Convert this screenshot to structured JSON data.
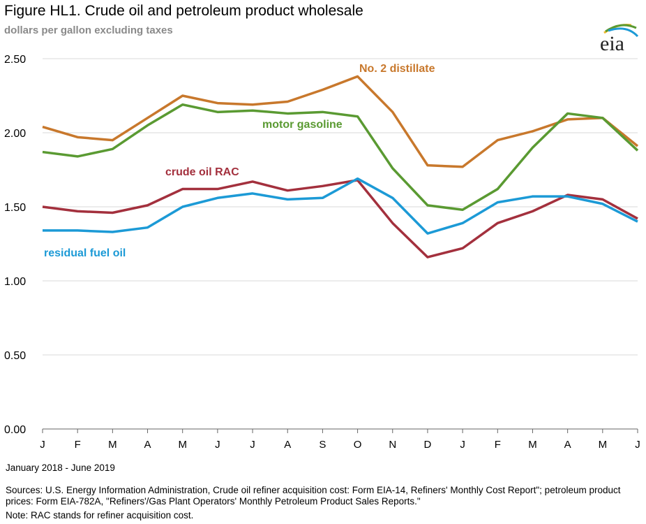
{
  "title": "Figure HL1.  Crude oil and petroleum product wholesale",
  "subtitle": "dollars per gallon excluding taxes",
  "logo_text": "eia",
  "date_range": "January 2018 - June 2019",
  "sources": "Sources:  U.S. Energy Information  Administration, Crude oil refiner acquisition cost:  Form EIA-14, Refiners' Monthly  Cost Report\"; petroleum product prices:  Form EIA-782A, \"Refiners'/Gas Plant Operators' Monthly  Petroleum Product Sales Reports.\"",
  "note": "Note:  RAC stands for refiner acquisition cost.",
  "chart_data": {
    "type": "line",
    "title": "Figure HL1.  Crude oil and petroleum product wholesale",
    "subtitle": "dollars per gallon excluding taxes",
    "xlabel": "",
    "ylabel": "",
    "categories": [
      "J",
      "F",
      "M",
      "A",
      "M",
      "J",
      "J",
      "A",
      "S",
      "O",
      "N",
      "D",
      "J",
      "F",
      "M",
      "A",
      "M",
      "J"
    ],
    "yticks": [
      "0.00",
      "0.50",
      "1.00",
      "1.50",
      "2.00",
      "2.50"
    ],
    "ylim": [
      0,
      2.5
    ],
    "grid": true,
    "legend": "inline labels",
    "series": [
      {
        "name": "No. 2 distillate",
        "color": "#C8782C",
        "values": [
          2.04,
          1.97,
          1.95,
          2.1,
          2.25,
          2.2,
          2.19,
          2.21,
          2.29,
          2.38,
          2.14,
          1.78,
          1.77,
          1.95,
          2.01,
          2.09,
          2.1,
          1.91
        ]
      },
      {
        "name": "motor gasoline",
        "color": "#5A9A32",
        "values": [
          1.87,
          1.84,
          1.89,
          2.05,
          2.19,
          2.14,
          2.15,
          2.13,
          2.14,
          2.11,
          1.76,
          1.51,
          1.48,
          1.62,
          1.9,
          2.13,
          2.1,
          1.88
        ]
      },
      {
        "name": "crude oil RAC",
        "color": "#A3303D",
        "values": [
          1.5,
          1.47,
          1.46,
          1.51,
          1.62,
          1.62,
          1.67,
          1.61,
          1.64,
          1.68,
          1.39,
          1.16,
          1.22,
          1.39,
          1.47,
          1.58,
          1.55,
          1.42
        ]
      },
      {
        "name": "residual fuel oil",
        "color": "#1C9AD6",
        "values": [
          1.34,
          1.34,
          1.33,
          1.36,
          1.5,
          1.56,
          1.59,
          1.55,
          1.56,
          1.69,
          1.56,
          1.32,
          1.39,
          1.53,
          1.57,
          1.57,
          1.52,
          1.4
        ]
      }
    ]
  }
}
